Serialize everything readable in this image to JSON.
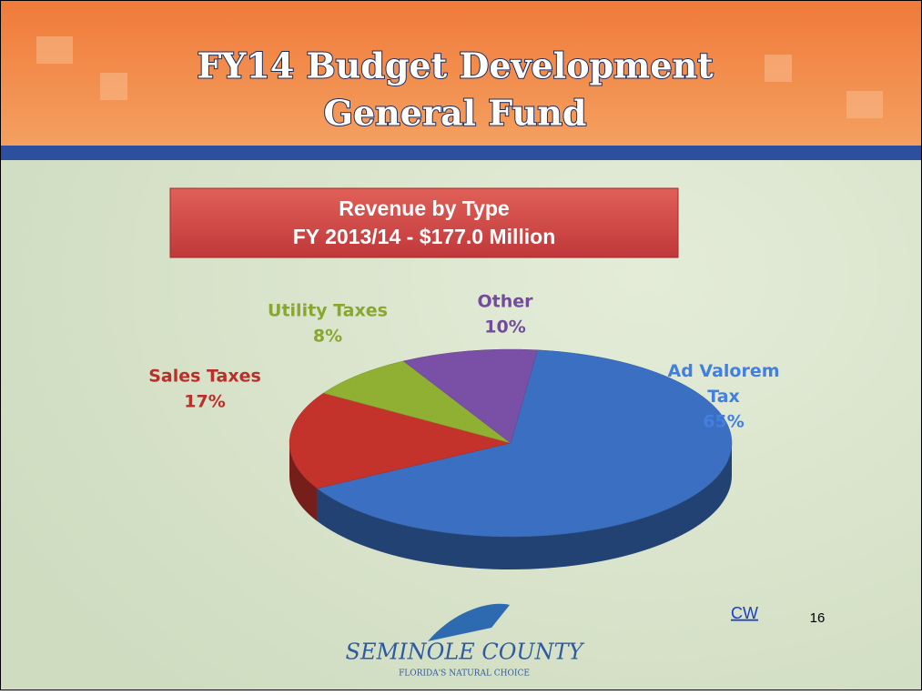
{
  "slide": {
    "title_lines": [
      "FY14 Budget Development",
      "General Fund"
    ],
    "logo_name": "SEMINOLE COUNTY",
    "logo_tagline": "FLORIDA'S NATURAL CHOICE",
    "link": "CW",
    "page_number": "16"
  },
  "chart_data": {
    "type": "pie",
    "title": "Revenue by Type",
    "subtitle": "FY 2013/14 - $177.0 Million",
    "categories": [
      "Ad Valorem Tax",
      "Sales Taxes",
      "Utility Taxes",
      "Other"
    ],
    "values": [
      65,
      17,
      8,
      10
    ],
    "value_labels": [
      "65%",
      "17%",
      "8%",
      "10%"
    ],
    "colors": [
      "#3b6fc2",
      "#c4322c",
      "#8fb032",
      "#7a4fa6"
    ]
  }
}
